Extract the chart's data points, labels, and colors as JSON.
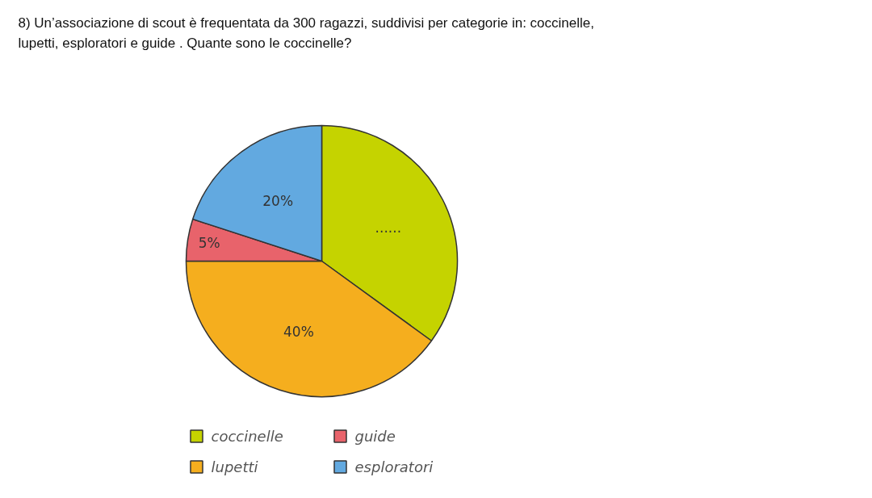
{
  "chart_data": {
    "type": "pie",
    "title": "8) Un’associazione di scout è frequentata da 300 ragazzi, suddivisi per categorie in: coccinelle, lupetti, esploratori e guide . Quante sono le coccinelle?",
    "categories": [
      "coccinelle",
      "lupetti",
      "guide",
      "esploratori"
    ],
    "values": [
      35,
      40,
      5,
      20
    ],
    "colors": [
      "#c5d300",
      "#f5ae1e",
      "#e8636b",
      "#62a9e0"
    ],
    "value_labels": [
      "......",
      "40%",
      "5%",
      "20%"
    ],
    "legend": "bottom"
  }
}
